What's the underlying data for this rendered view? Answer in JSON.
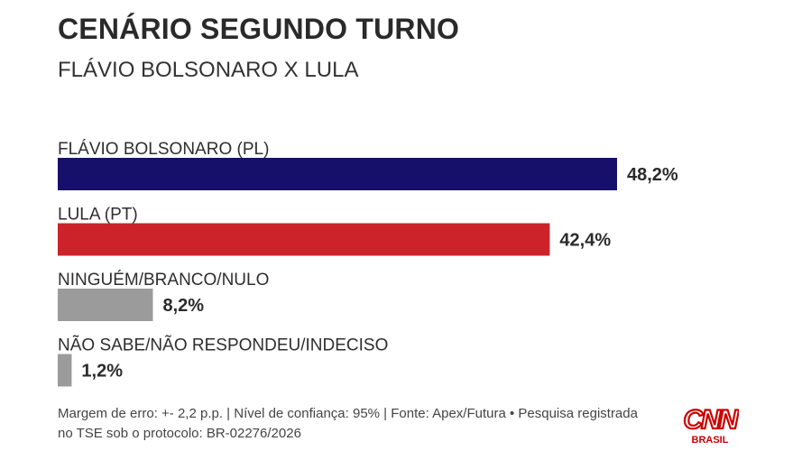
{
  "title": "CENÁRIO SEGUNDO TURNO",
  "subtitle": "FLÁVIO BOLSONARO X LULA",
  "chart_data": {
    "type": "bar",
    "orientation": "horizontal",
    "categories": [
      "FLÁVIO BOLSONARO (PL)",
      "LULA (PT)",
      "NINGUÉM/BRANCO/NULO",
      "NÃO SABE/NÃO RESPONDEU/INDECISO"
    ],
    "values": [
      48.2,
      42.4,
      8.2,
      1.2
    ],
    "value_labels": [
      "48,2%",
      "42,4%",
      "8,2%",
      "1,2%"
    ],
    "colors": [
      "#16106b",
      "#cc2229",
      "#9b9b9b",
      "#9b9b9b"
    ],
    "xlim": [
      0,
      100
    ],
    "grid": false,
    "legend": "none"
  },
  "footer": {
    "line1": "Margem de erro: +- 2,2 p.p. | Nível de confiança: 95% | Fonte: Apex/Futura • Pesquisa registrada",
    "line2": "no TSE sob o protocolo: BR-02276/2026"
  },
  "logo": {
    "brand": "CNN",
    "sub": "BRASIL",
    "color": "#cc0000"
  }
}
